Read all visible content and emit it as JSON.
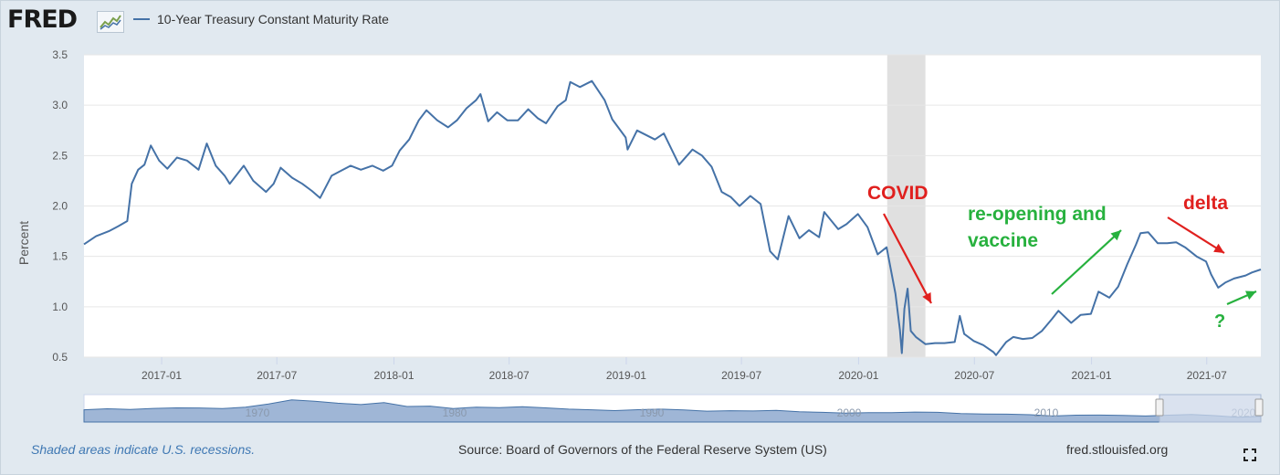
{
  "header": {
    "logo_text": "FRED",
    "logo_graph_icon": "line-chart-icon",
    "legend_label": "10-Year Treasury Constant Maturity Rate"
  },
  "colors": {
    "series": "#4572a7",
    "recession": "#e0e0e0",
    "annotation_red": "#e0201e",
    "annotation_green": "#27b13e",
    "navigator_fill": "#9fb6d6",
    "navigator_window": "#cdd8ea"
  },
  "chart_data": {
    "type": "line",
    "title": "10-Year Treasury Constant Maturity Rate",
    "xlabel": "",
    "ylabel": "Percent",
    "xlim": [
      "2016-09-01",
      "2021-09-24"
    ],
    "ylim": [
      0.5,
      3.5
    ],
    "yticks": [
      0.5,
      1.0,
      1.5,
      2.0,
      2.5,
      3.0,
      3.5
    ],
    "ytick_labels": [
      "0.5",
      "1.0",
      "1.5",
      "2.0",
      "2.5",
      "3.0",
      "3.5"
    ],
    "xticks": [
      "2017-01-01",
      "2017-07-01",
      "2018-01-01",
      "2018-07-01",
      "2019-01-01",
      "2019-07-01",
      "2020-01-01",
      "2020-07-01",
      "2021-01-01",
      "2021-07-01"
    ],
    "xtick_labels": [
      "2017-01",
      "2017-07",
      "2018-01",
      "2018-07",
      "2019-01",
      "2019-07",
      "2020-01",
      "2020-07",
      "2021-01",
      "2021-07"
    ],
    "grid": "horizontal",
    "recessions": [
      {
        "start": "2020-02-15",
        "end": "2020-04-15"
      }
    ],
    "series": [
      {
        "name": "10-Year Treasury Constant Maturity Rate",
        "x": [
          "2016-09-01",
          "2016-09-20",
          "2016-10-10",
          "2016-10-25",
          "2016-11-08",
          "2016-11-15",
          "2016-11-25",
          "2016-12-05",
          "2016-12-15",
          "2016-12-28",
          "2017-01-10",
          "2017-01-25",
          "2017-02-10",
          "2017-02-28",
          "2017-03-13",
          "2017-03-27",
          "2017-04-10",
          "2017-04-18",
          "2017-05-10",
          "2017-05-25",
          "2017-06-14",
          "2017-06-26",
          "2017-07-07",
          "2017-07-25",
          "2017-08-10",
          "2017-08-25",
          "2017-09-07",
          "2017-09-25",
          "2017-10-10",
          "2017-10-25",
          "2017-11-10",
          "2017-11-28",
          "2017-12-15",
          "2017-12-29",
          "2018-01-10",
          "2018-01-25",
          "2018-02-09",
          "2018-02-21",
          "2018-03-10",
          "2018-03-27",
          "2018-04-10",
          "2018-04-25",
          "2018-05-10",
          "2018-05-17",
          "2018-05-29",
          "2018-06-12",
          "2018-06-28",
          "2018-07-15",
          "2018-07-31",
          "2018-08-15",
          "2018-08-28",
          "2018-09-15",
          "2018-09-28",
          "2018-10-05",
          "2018-10-20",
          "2018-11-08",
          "2018-11-28",
          "2018-12-10",
          "2018-12-31",
          "2019-01-03",
          "2019-01-18",
          "2019-02-15",
          "2019-03-01",
          "2019-03-25",
          "2019-04-15",
          "2019-04-30",
          "2019-05-15",
          "2019-05-31",
          "2019-06-14",
          "2019-06-28",
          "2019-07-15",
          "2019-07-31",
          "2019-08-15",
          "2019-08-27",
          "2019-09-13",
          "2019-09-30",
          "2019-10-15",
          "2019-10-31",
          "2019-11-08",
          "2019-11-30",
          "2019-12-13",
          "2019-12-31",
          "2020-01-15",
          "2020-01-31",
          "2020-02-14",
          "2020-02-28",
          "2020-03-06",
          "2020-03-09",
          "2020-03-13",
          "2020-03-18",
          "2020-03-23",
          "2020-03-31",
          "2020-04-15",
          "2020-04-30",
          "2020-05-15",
          "2020-05-31",
          "2020-06-08",
          "2020-06-15",
          "2020-06-30",
          "2020-07-15",
          "2020-07-31",
          "2020-08-04",
          "2020-08-20",
          "2020-08-31",
          "2020-09-15",
          "2020-09-30",
          "2020-10-15",
          "2020-10-31",
          "2020-11-10",
          "2020-11-30",
          "2020-12-15",
          "2020-12-31",
          "2021-01-12",
          "2021-01-29",
          "2021-02-12",
          "2021-02-26",
          "2021-03-12",
          "2021-03-19",
          "2021-03-31",
          "2021-04-15",
          "2021-04-30",
          "2021-05-14",
          "2021-05-28",
          "2021-06-15",
          "2021-06-30",
          "2021-07-08",
          "2021-07-19",
          "2021-07-30",
          "2021-08-13",
          "2021-08-31",
          "2021-09-10",
          "2021-09-24"
        ],
        "y": [
          1.62,
          1.7,
          1.75,
          1.8,
          1.85,
          2.22,
          2.36,
          2.41,
          2.6,
          2.45,
          2.37,
          2.48,
          2.45,
          2.36,
          2.62,
          2.4,
          2.3,
          2.22,
          2.4,
          2.25,
          2.14,
          2.22,
          2.38,
          2.28,
          2.22,
          2.15,
          2.08,
          2.3,
          2.35,
          2.4,
          2.36,
          2.4,
          2.35,
          2.4,
          2.55,
          2.66,
          2.85,
          2.95,
          2.85,
          2.78,
          2.85,
          2.97,
          3.05,
          3.11,
          2.84,
          2.93,
          2.85,
          2.85,
          2.96,
          2.87,
          2.82,
          2.99,
          3.05,
          3.23,
          3.18,
          3.24,
          3.05,
          2.86,
          2.68,
          2.56,
          2.75,
          2.66,
          2.72,
          2.41,
          2.56,
          2.5,
          2.39,
          2.14,
          2.09,
          2.0,
          2.1,
          2.02,
          1.55,
          1.47,
          1.9,
          1.68,
          1.76,
          1.69,
          1.94,
          1.77,
          1.82,
          1.92,
          1.79,
          1.52,
          1.59,
          1.13,
          0.77,
          0.54,
          0.98,
          1.18,
          0.76,
          0.7,
          0.63,
          0.64,
          0.64,
          0.65,
          0.91,
          0.73,
          0.66,
          0.62,
          0.55,
          0.52,
          0.65,
          0.7,
          0.68,
          0.69,
          0.76,
          0.88,
          0.96,
          0.84,
          0.92,
          0.93,
          1.15,
          1.09,
          1.2,
          1.42,
          1.62,
          1.73,
          1.74,
          1.63,
          1.63,
          1.64,
          1.59,
          1.5,
          1.45,
          1.32,
          1.19,
          1.24,
          1.28,
          1.31,
          1.34,
          1.37
        ]
      }
    ],
    "annotations": [
      {
        "text": "COVID",
        "color": "red"
      },
      {
        "text": "re-opening and",
        "color": "green"
      },
      {
        "text": "vaccine",
        "color": "green"
      },
      {
        "text": "delta",
        "color": "red"
      },
      {
        "text": "?",
        "color": "green"
      }
    ]
  },
  "navigator": {
    "labels": [
      "1970",
      "1980",
      "1990",
      "2000",
      "2010",
      "2020"
    ],
    "profile": [
      6.5,
      7.3,
      6.8,
      7.6,
      8.0,
      7.9,
      7.4,
      8.5,
      11.0,
      14.0,
      13.0,
      11.5,
      10.5,
      12.0,
      9.0,
      9.3,
      7.5,
      8.5,
      8.2,
      8.8,
      8.0,
      7.0,
      6.5,
      5.9,
      6.6,
      7.0,
      6.4,
      5.5,
      5.8,
      5.6,
      6.1,
      5.0,
      4.6,
      4.0,
      4.3,
      4.3,
      4.8,
      4.6,
      3.7,
      3.3,
      3.2,
      2.8,
      1.8,
      2.4,
      2.5,
      2.2,
      1.8,
      2.4,
      2.9,
      2.1,
      0.9,
      1.5
    ]
  },
  "footer": {
    "note": "Shaded areas indicate U.S. recessions.",
    "source": "Source: Board of Governors of the Federal Reserve System (US)",
    "site": "fred.stlouisfed.org",
    "fullscreen_icon": "fullscreen-icon"
  }
}
